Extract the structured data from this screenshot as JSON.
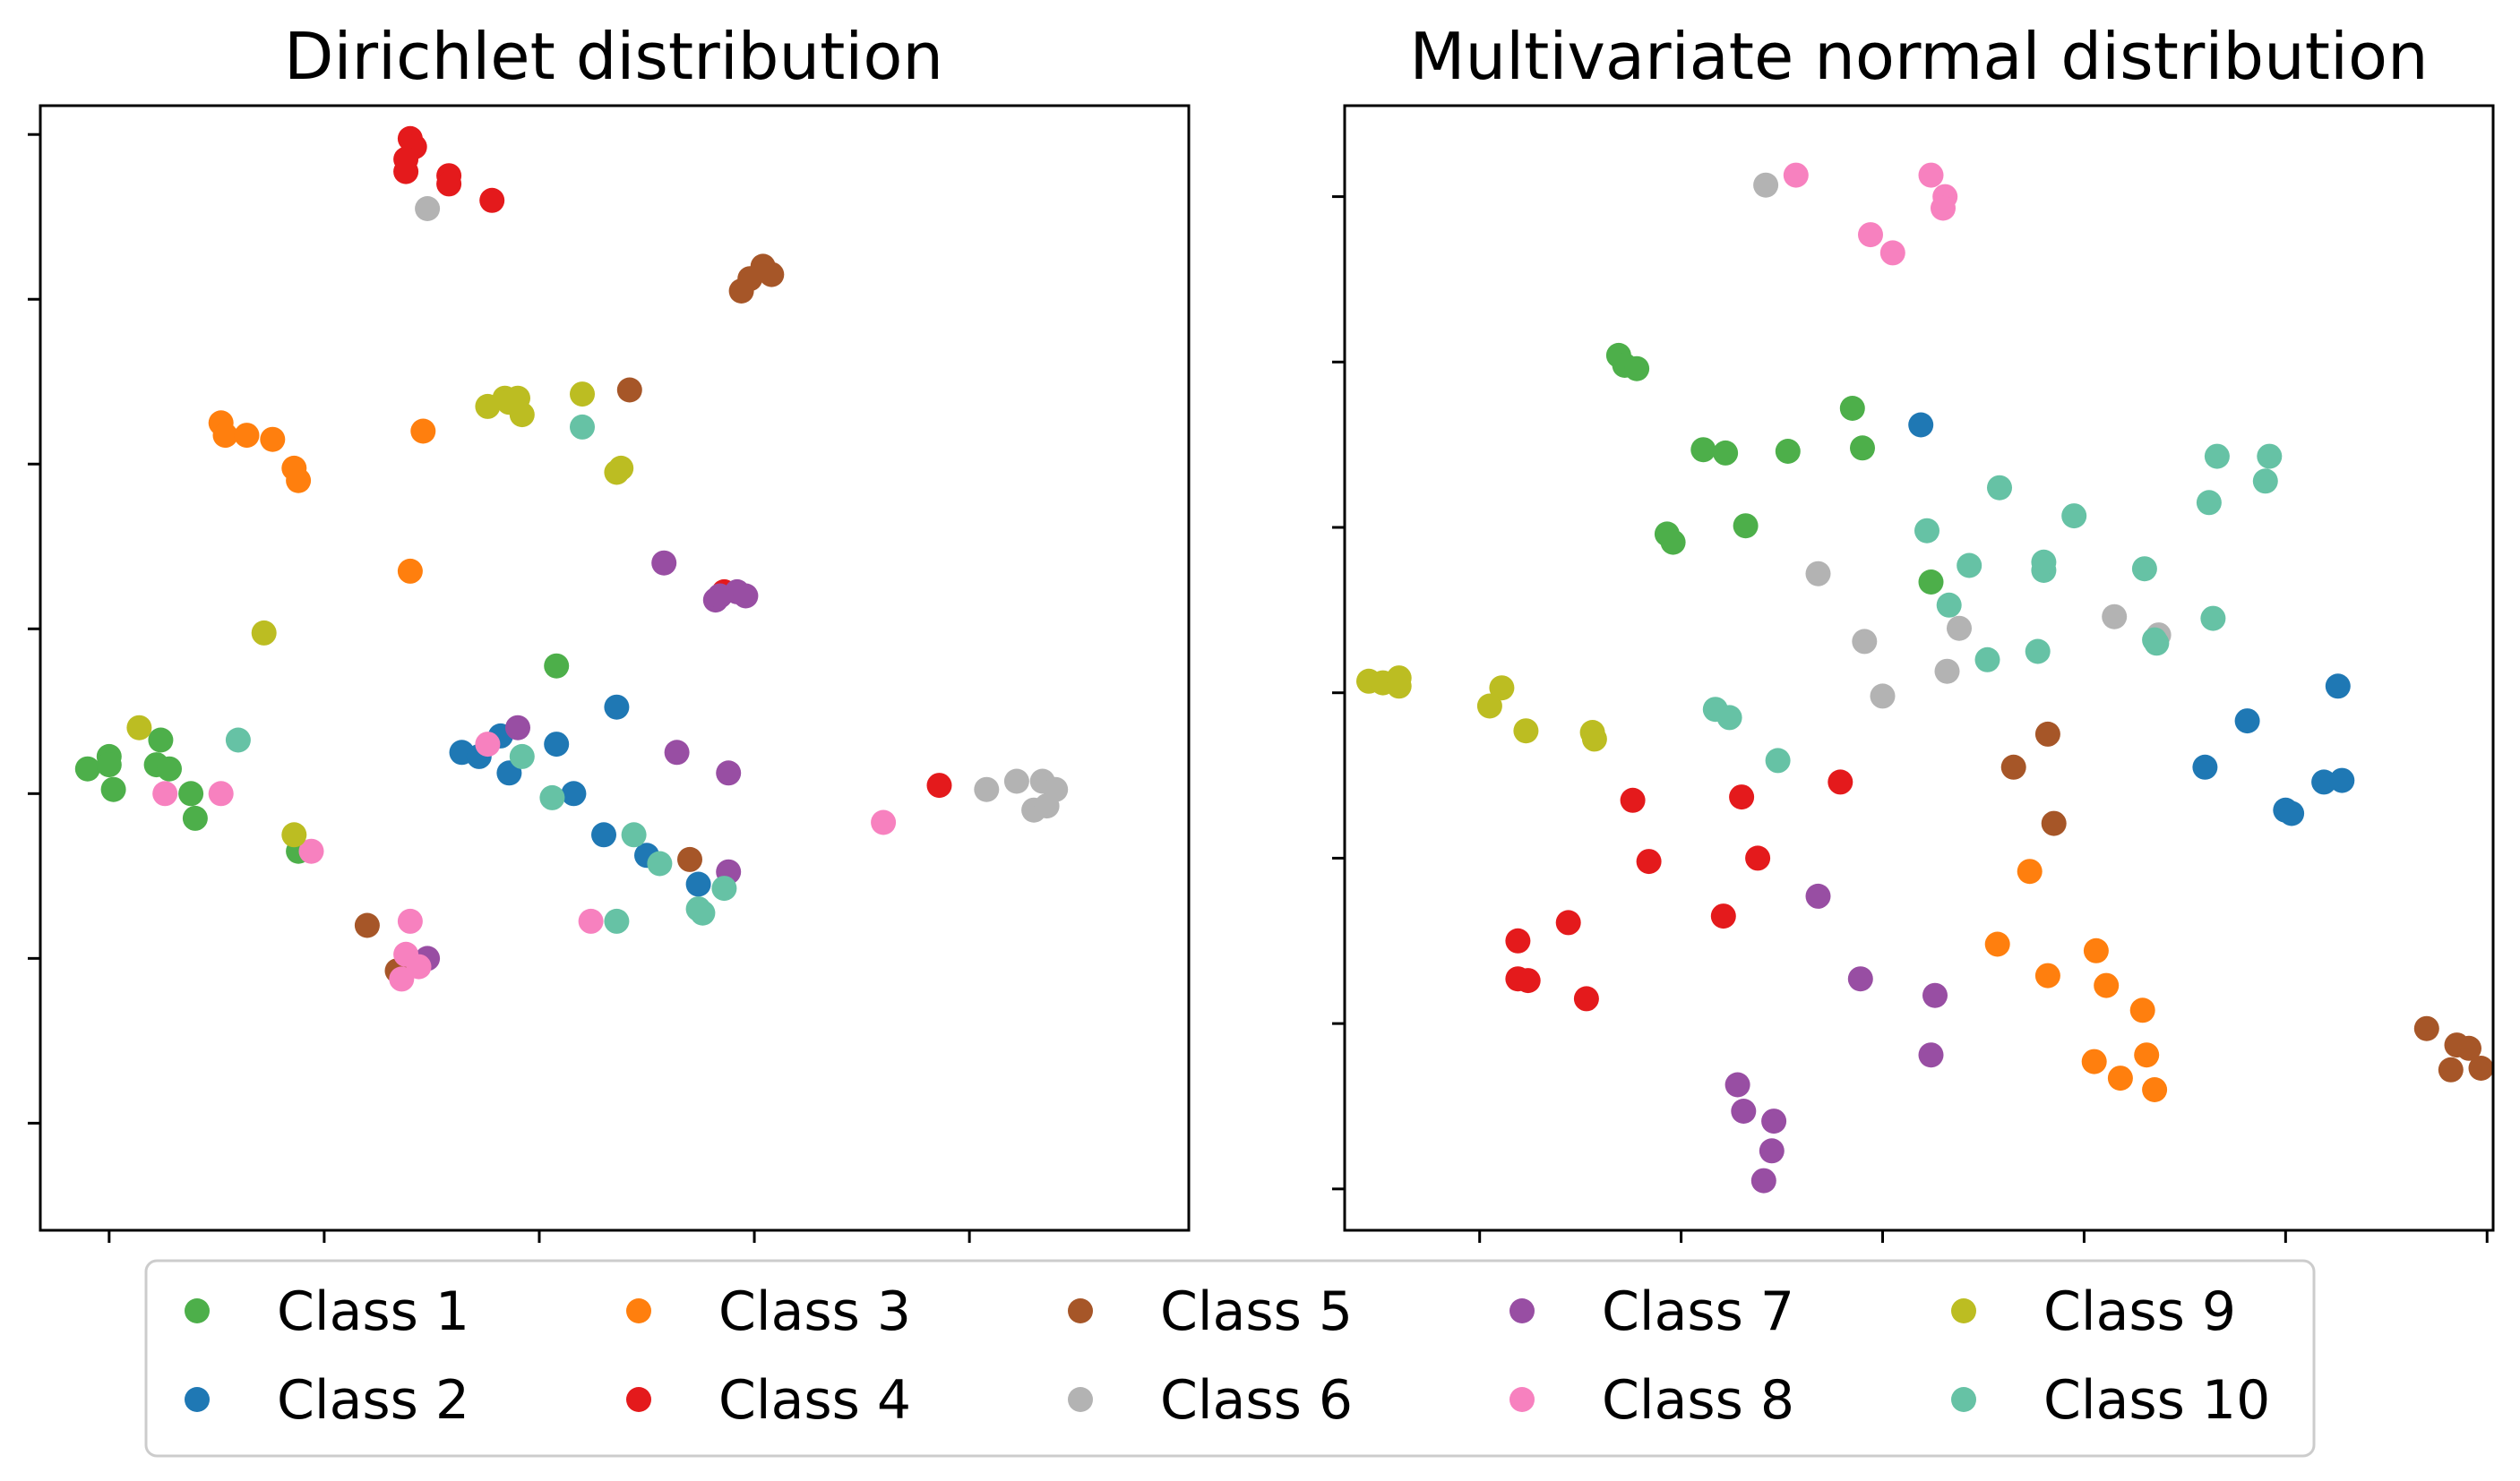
{
  "legend": {
    "entries": [
      {
        "label": "Class 1",
        "color": "#4daf4a"
      },
      {
        "label": "Class 2",
        "color": "#1f78b4"
      },
      {
        "label": "Class 3",
        "color": "#ff7f0e"
      },
      {
        "label": "Class 4",
        "color": "#e41a1c"
      },
      {
        "label": "Class 5",
        "color": "#a65628"
      },
      {
        "label": "Class 6",
        "color": "#b3b3b3"
      },
      {
        "label": "Class 7",
        "color": "#984ea3"
      },
      {
        "label": "Class 8",
        "color": "#f781bf"
      },
      {
        "label": "Class 9",
        "color": "#bcbd22"
      },
      {
        "label": "Class 10",
        "color": "#66c2a5"
      }
    ],
    "placement": "bottom-center"
  },
  "chart_data": [
    {
      "type": "scatter",
      "title": "Dirichlet distribution",
      "xlabel": "",
      "ylabel": "",
      "xlim": [
        -10.6,
        16.1
      ],
      "ylim": [
        -7.6,
        19.7
      ],
      "xticks": [
        -9,
        -4,
        1,
        6,
        11
      ],
      "yticks": [
        -5,
        -1,
        3,
        7,
        11,
        15,
        19
      ],
      "tick_labels_visible": false,
      "series": [
        {
          "name": "Class 1",
          "points": [
            [
              -9.5,
              3.6
            ],
            [
              -9.0,
              3.9
            ],
            [
              -9.0,
              3.7
            ],
            [
              -8.9,
              3.1
            ],
            [
              -7.9,
              3.7
            ],
            [
              -7.8,
              4.3
            ],
            [
              -7.1,
              3.0
            ],
            [
              -7.6,
              3.6
            ],
            [
              -7.0,
              2.4
            ],
            [
              -4.6,
              1.6
            ],
            [
              1.4,
              6.1
            ]
          ]
        },
        {
          "name": "Class 2",
          "points": [
            [
              -0.8,
              4.0
            ],
            [
              -0.4,
              3.9
            ],
            [
              0.1,
              4.4
            ],
            [
              0.3,
              3.5
            ],
            [
              1.4,
              4.2
            ],
            [
              1.8,
              3.0
            ],
            [
              2.5,
              2.0
            ],
            [
              2.8,
              5.1
            ],
            [
              3.5,
              1.5
            ],
            [
              4.7,
              0.8
            ]
          ]
        },
        {
          "name": "Class 3",
          "points": [
            [
              -6.4,
              12.0
            ],
            [
              -6.3,
              11.7
            ],
            [
              -5.8,
              11.7
            ],
            [
              -5.2,
              11.6
            ],
            [
              -4.7,
              10.9
            ],
            [
              -4.6,
              10.6
            ],
            [
              -1.7,
              11.8
            ],
            [
              -2.0,
              8.4
            ]
          ]
        },
        {
          "name": "Class 4",
          "points": [
            [
              -2.0,
              18.9
            ],
            [
              -1.9,
              18.7
            ],
            [
              -2.1,
              18.4
            ],
            [
              -2.1,
              18.1
            ],
            [
              -1.1,
              18.0
            ],
            [
              -1.1,
              17.8
            ],
            [
              -0.1,
              17.4
            ],
            [
              5.3,
              7.9
            ],
            [
              10.3,
              3.2
            ]
          ]
        },
        {
          "name": "Class 5",
          "points": [
            [
              -3.0,
              -0.2
            ],
            [
              -2.3,
              -1.3
            ],
            [
              3.1,
              12.8
            ],
            [
              4.5,
              1.4
            ],
            [
              6.4,
              15.6
            ],
            [
              6.2,
              15.8
            ],
            [
              5.9,
              15.5
            ],
            [
              5.7,
              15.2
            ]
          ]
        },
        {
          "name": "Class 6",
          "points": [
            [
              -1.6,
              17.2
            ],
            [
              11.4,
              3.1
            ],
            [
              12.1,
              3.3
            ],
            [
              12.7,
              3.3
            ],
            [
              13.0,
              3.1
            ],
            [
              12.5,
              2.6
            ],
            [
              12.8,
              2.7
            ]
          ]
        },
        {
          "name": "Class 7",
          "points": [
            [
              -1.6,
              -1.0
            ],
            [
              0.5,
              4.6
            ],
            [
              3.9,
              8.6
            ],
            [
              4.2,
              4.0
            ],
            [
              5.1,
              7.7
            ],
            [
              5.2,
              7.8
            ],
            [
              5.6,
              7.9
            ],
            [
              5.4,
              3.5
            ],
            [
              5.4,
              1.1
            ],
            [
              5.8,
              7.8
            ]
          ]
        },
        {
          "name": "Class 8",
          "points": [
            [
              -7.7,
              3.0
            ],
            [
              -6.4,
              3.0
            ],
            [
              -4.3,
              1.6
            ],
            [
              -2.1,
              -0.9
            ],
            [
              -2.2,
              -1.5
            ],
            [
              -2.0,
              -0.1
            ],
            [
              -1.8,
              -1.2
            ],
            [
              -0.2,
              4.2
            ],
            [
              2.2,
              -0.1
            ],
            [
              9.0,
              2.3
            ]
          ]
        },
        {
          "name": "Class 9",
          "points": [
            [
              -8.3,
              4.6
            ],
            [
              -5.4,
              6.9
            ],
            [
              -4.7,
              2.0
            ],
            [
              -0.2,
              12.4
            ],
            [
              0.2,
              12.6
            ],
            [
              0.5,
              12.6
            ],
            [
              0.6,
              12.2
            ],
            [
              0.3,
              12.5
            ],
            [
              2.0,
              12.7
            ],
            [
              2.8,
              10.8
            ],
            [
              2.9,
              10.9
            ]
          ]
        },
        {
          "name": "Class 10",
          "points": [
            [
              -6.0,
              4.3
            ],
            [
              0.6,
              3.9
            ],
            [
              1.3,
              2.9
            ],
            [
              2.0,
              11.9
            ],
            [
              3.2,
              2.0
            ],
            [
              3.8,
              1.3
            ],
            [
              5.3,
              0.7
            ],
            [
              4.7,
              0.2
            ],
            [
              4.8,
              0.1
            ],
            [
              2.8,
              -0.1
            ]
          ]
        }
      ]
    },
    {
      "type": "scatter",
      "title": "Multivariate normal distribution",
      "xlabel": "",
      "ylabel": "",
      "xlim": [
        -3.35,
        2.35
      ],
      "ylim": [
        -3.25,
        3.55
      ],
      "xticks": [
        -2.68,
        -1.68,
        -0.68,
        0.32,
        1.32,
        2.32
      ],
      "yticks": [
        -3.0,
        -2.0,
        -1.0,
        0.0,
        1.0,
        2.0,
        3.0
      ],
      "tick_labels_visible": false,
      "series": [
        {
          "name": "Class 1",
          "points": [
            [
              -1.99,
              2.04
            ],
            [
              -1.96,
              1.98
            ],
            [
              -1.9,
              1.96
            ],
            [
              -1.57,
              1.47
            ],
            [
              -1.46,
              1.45
            ],
            [
              -1.15,
              1.46
            ],
            [
              -0.83,
              1.72
            ],
            [
              -0.78,
              1.48
            ],
            [
              -1.75,
              0.96
            ],
            [
              -1.72,
              0.91
            ],
            [
              -1.36,
              1.01
            ],
            [
              -0.44,
              0.67
            ]
          ]
        },
        {
          "name": "Class 2",
          "points": [
            [
              -0.49,
              1.62
            ],
            [
              0.92,
              -0.45
            ],
            [
              1.13,
              -0.17
            ],
            [
              1.32,
              -0.71
            ],
            [
              1.35,
              -0.73
            ],
            [
              1.51,
              -0.54
            ],
            [
              1.6,
              -0.53
            ],
            [
              1.58,
              0.04
            ]
          ]
        },
        {
          "name": "Class 3",
          "points": [
            [
              0.05,
              -1.08
            ],
            [
              -0.11,
              -1.52
            ],
            [
              0.14,
              -1.71
            ],
            [
              0.38,
              -1.56
            ],
            [
              0.43,
              -1.77
            ],
            [
              0.61,
              -1.92
            ],
            [
              0.37,
              -2.23
            ],
            [
              0.5,
              -2.33
            ],
            [
              0.63,
              -2.19
            ],
            [
              0.67,
              -2.4
            ]
          ]
        },
        {
          "name": "Class 4",
          "points": [
            [
              -2.49,
              -1.5
            ],
            [
              -2.49,
              -1.73
            ],
            [
              -2.44,
              -1.74
            ],
            [
              -2.15,
              -1.85
            ],
            [
              -2.24,
              -1.39
            ],
            [
              -1.92,
              -0.65
            ],
            [
              -1.84,
              -1.02
            ],
            [
              -1.38,
              -0.63
            ],
            [
              -1.47,
              -1.35
            ],
            [
              -1.3,
              -1.0
            ],
            [
              -0.89,
              -0.54
            ]
          ]
        },
        {
          "name": "Class 5",
          "points": [
            [
              -0.03,
              -0.45
            ],
            [
              0.14,
              -0.25
            ],
            [
              0.17,
              -0.79
            ],
            [
              2.02,
              -2.03
            ],
            [
              2.17,
              -2.13
            ],
            [
              2.23,
              -2.15
            ],
            [
              2.29,
              -2.27
            ],
            [
              2.14,
              -2.28
            ]
          ]
        },
        {
          "name": "Class 6",
          "points": [
            [
              -1.26,
              3.07
            ],
            [
              -1.0,
              0.72
            ],
            [
              -0.77,
              0.31
            ],
            [
              -0.68,
              -0.02
            ],
            [
              -0.36,
              0.13
            ],
            [
              -0.3,
              0.39
            ],
            [
              0.47,
              0.46
            ],
            [
              0.69,
              0.35
            ]
          ]
        },
        {
          "name": "Class 7",
          "points": [
            [
              -1.0,
              -1.23
            ],
            [
              -0.79,
              -1.73
            ],
            [
              -0.42,
              -1.83
            ],
            [
              -0.44,
              -2.19
            ],
            [
              -1.4,
              -2.37
            ],
            [
              -1.37,
              -2.53
            ],
            [
              -1.22,
              -2.59
            ],
            [
              -1.23,
              -2.77
            ],
            [
              -1.27,
              -2.95
            ]
          ]
        },
        {
          "name": "Class 8",
          "points": [
            [
              -1.11,
              3.13
            ],
            [
              -0.74,
              2.77
            ],
            [
              -0.63,
              2.66
            ],
            [
              -0.44,
              3.13
            ],
            [
              -0.37,
              3.0
            ],
            [
              -0.38,
              2.93
            ]
          ]
        },
        {
          "name": "Class 9",
          "points": [
            [
              -3.23,
              0.07
            ],
            [
              -3.16,
              0.06
            ],
            [
              -3.08,
              0.04
            ],
            [
              -3.08,
              0.09
            ],
            [
              -2.57,
              0.03
            ],
            [
              -2.63,
              -0.08
            ],
            [
              -2.45,
              -0.23
            ],
            [
              -2.12,
              -0.24
            ],
            [
              -2.11,
              -0.28
            ]
          ]
        },
        {
          "name": "Class 10",
          "points": [
            [
              -1.51,
              -0.1
            ],
            [
              -1.44,
              -0.15
            ],
            [
              -1.2,
              -0.41
            ],
            [
              -0.46,
              0.98
            ],
            [
              -0.35,
              0.53
            ],
            [
              -0.25,
              0.77
            ],
            [
              -0.16,
              0.2
            ],
            [
              -0.1,
              1.24
            ],
            [
              0.09,
              0.25
            ],
            [
              0.12,
              0.74
            ],
            [
              0.27,
              1.07
            ],
            [
              0.12,
              0.79
            ],
            [
              0.62,
              0.75
            ],
            [
              0.68,
              0.3
            ],
            [
              0.94,
              1.15
            ],
            [
              0.98,
              1.43
            ],
            [
              1.24,
              1.43
            ],
            [
              1.22,
              1.28
            ],
            [
              0.96,
              0.45
            ],
            [
              0.67,
              0.32
            ]
          ]
        }
      ]
    }
  ]
}
